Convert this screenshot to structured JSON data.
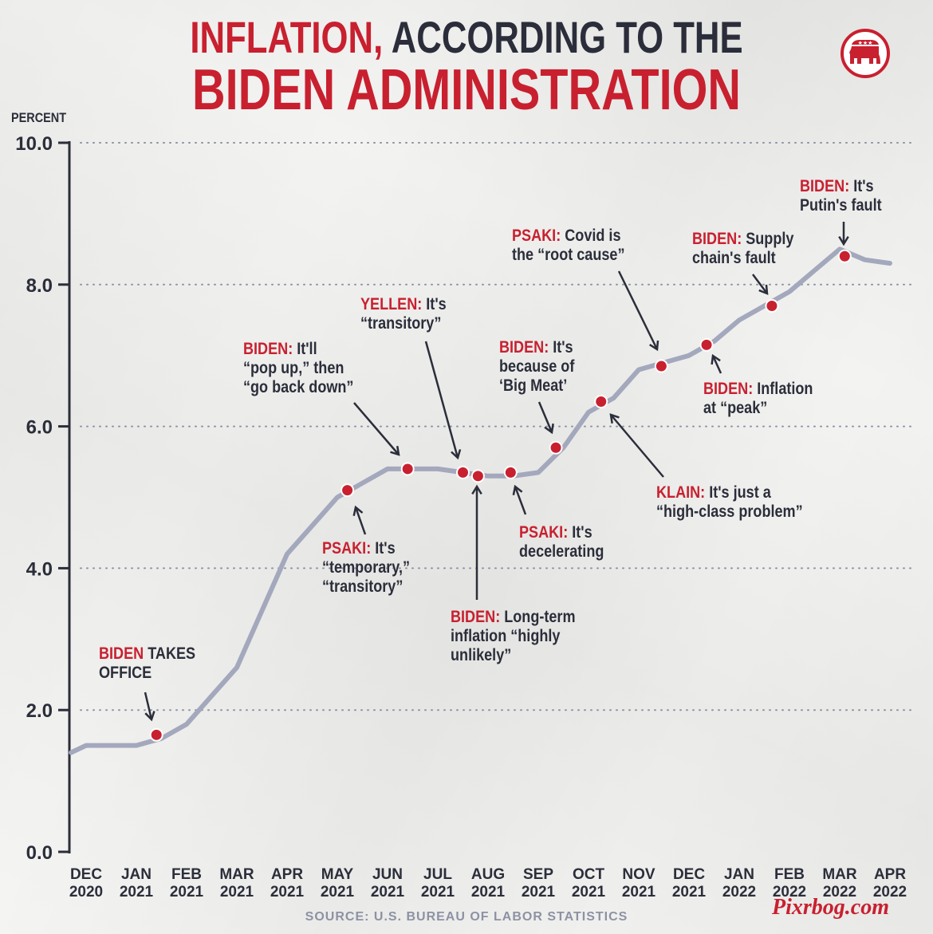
{
  "title": {
    "line1_red": "INFLATION,",
    "line1_dark": " ACCORDING TO THE",
    "line2": "BIDEN ADMINISTRATION"
  },
  "logo": {
    "icon": "republican-elephant-icon",
    "stars": "★★★"
  },
  "colors": {
    "accent": "#c8202f",
    "text": "#2b2e3a",
    "line": "#a3a8bd",
    "source": "#8d92a3"
  },
  "source": "SOURCE: U.S. BUREAU OF LABOR STATISTICS",
  "watermark": "Pixrbog.com",
  "chart_data": {
    "type": "line",
    "ylabel": "PERCENT",
    "ylim": [
      0,
      10
    ],
    "yticks": [
      "0.0",
      "2.0",
      "4.0",
      "6.0",
      "8.0",
      "10.0"
    ],
    "ytick_values": [
      0,
      2,
      4,
      6,
      8,
      10
    ],
    "grid": "dotted horizontal",
    "x_ticks": [
      {
        "m": "DEC",
        "y": "2020"
      },
      {
        "m": "JAN",
        "y": "2021"
      },
      {
        "m": "FEB",
        "y": "2021"
      },
      {
        "m": "MAR",
        "y": "2021"
      },
      {
        "m": "APR",
        "y": "2021"
      },
      {
        "m": "MAY",
        "y": "2021"
      },
      {
        "m": "JUN",
        "y": "2021"
      },
      {
        "m": "JUL",
        "y": "2021"
      },
      {
        "m": "AUG",
        "y": "2021"
      },
      {
        "m": "SEP",
        "y": "2021"
      },
      {
        "m": "OCT",
        "y": "2021"
      },
      {
        "m": "NOV",
        "y": "2021"
      },
      {
        "m": "DEC",
        "y": "2021"
      },
      {
        "m": "JAN",
        "y": "2022"
      },
      {
        "m": "FEB",
        "y": "2022"
      },
      {
        "m": "MAR",
        "y": "2022"
      },
      {
        "m": "APR",
        "y": "2022"
      }
    ],
    "series": [
      {
        "x": [
          -0.3,
          0,
          0.5,
          1,
          1.5,
          2,
          2.5,
          3,
          3.5,
          4,
          4.5,
          5,
          5.5,
          6,
          6.5,
          7,
          7.5,
          8,
          8.5,
          9,
          9.5,
          10,
          10.5,
          11,
          11.5,
          12,
          12.5,
          13,
          13.5,
          14,
          14.5,
          15,
          15.5,
          16
        ],
        "values": [
          1.4,
          1.5,
          1.5,
          1.5,
          1.6,
          1.8,
          2.2,
          2.6,
          3.4,
          4.2,
          4.6,
          5.0,
          5.2,
          5.4,
          5.4,
          5.4,
          5.35,
          5.3,
          5.3,
          5.35,
          5.7,
          6.2,
          6.4,
          6.8,
          6.9,
          7.0,
          7.2,
          7.5,
          7.7,
          7.9,
          8.2,
          8.5,
          8.35,
          8.3
        ]
      }
    ],
    "annotations": [
      {
        "who": "BIDEN",
        "rest": [
          " TAKES",
          "OFFICE"
        ],
        "x": 1.4,
        "y": 1.65
      },
      {
        "who": "PSAKI:",
        "rest": [
          " It's",
          "“temporary,”",
          "“transitory”"
        ],
        "x": 5.2,
        "y": 5.1
      },
      {
        "who": "BIDEN:",
        "rest": [
          " It'll",
          "“pop up,” then",
          "“go back down”"
        ],
        "x": 6.4,
        "y": 5.4
      },
      {
        "who": "YELLEN:",
        "rest": [
          " It's",
          "“transitory”"
        ],
        "x": 7.5,
        "y": 5.35
      },
      {
        "who": "BIDEN:",
        "rest": [
          " Long-term",
          "inflation “highly",
          "unlikely”"
        ],
        "x": 7.8,
        "y": 5.3
      },
      {
        "who": "PSAKI:",
        "rest": [
          " It's",
          "decelerating"
        ],
        "x": 8.45,
        "y": 5.35
      },
      {
        "who": "BIDEN:",
        "rest": [
          " It's",
          "because of",
          "‘Big Meat’"
        ],
        "x": 9.35,
        "y": 5.7
      },
      {
        "who": "KLAIN:",
        "rest": [
          " It's just a",
          "“high-class problem”"
        ],
        "x": 10.25,
        "y": 6.35
      },
      {
        "who": "PSAKI:",
        "rest": [
          " Covid is",
          "the “root cause”"
        ],
        "x": 11.45,
        "y": 6.85
      },
      {
        "who": "BIDEN:",
        "rest": [
          " Inflation",
          "at “peak”"
        ],
        "x": 12.35,
        "y": 7.15
      },
      {
        "who": "BIDEN:",
        "rest": [
          " Supply",
          "chain's fault"
        ],
        "x": 13.65,
        "y": 7.7
      },
      {
        "who": "BIDEN:",
        "rest": [
          " It's",
          "Putin's fault"
        ],
        "x": 15.1,
        "y": 8.4
      }
    ]
  }
}
